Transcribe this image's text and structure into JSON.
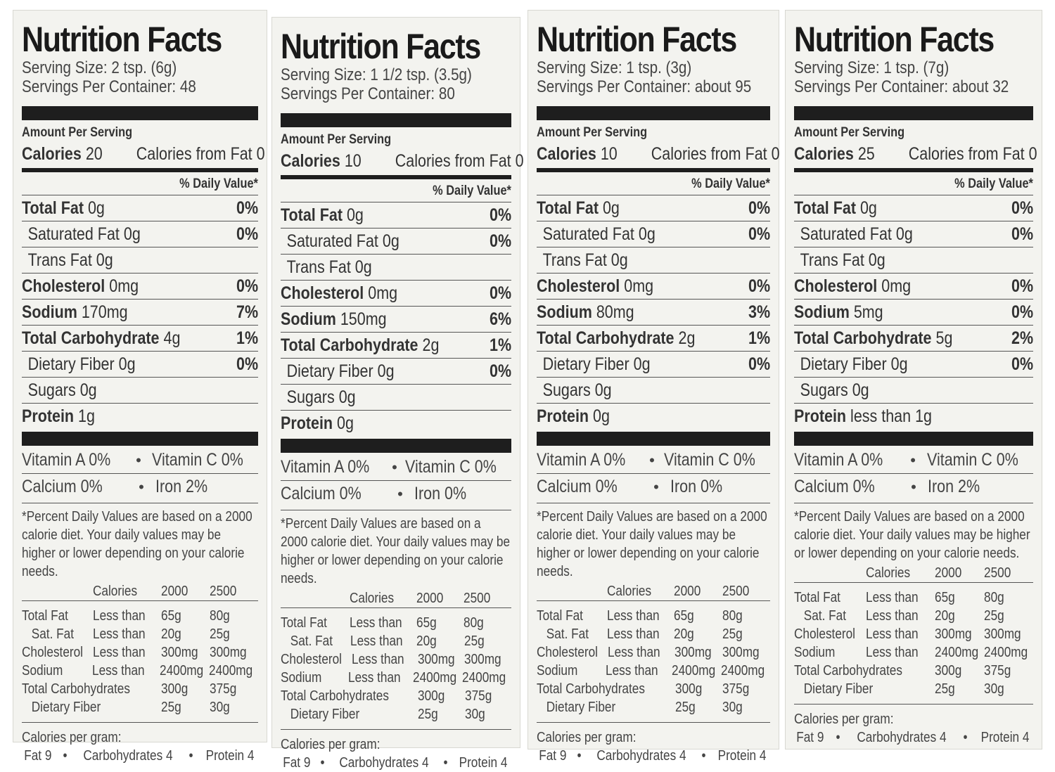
{
  "labels": [
    {
      "title": "Nutrition Facts",
      "serving_size": "Serving Size:  2 tsp. (6g)",
      "servings_per_container": "Servings Per Container:  48",
      "amount_per_serving": "Amount Per Serving",
      "calories_label": "Calories",
      "calories": "20",
      "calories_from_fat": "Calories from Fat 0",
      "daily_value_header": "% Daily Value*",
      "nutrients": [
        {
          "name": "Total Fat",
          "amount": "0g",
          "pct": "0%",
          "bold": true,
          "indent": false
        },
        {
          "name": "Saturated Fat",
          "amount": "0g",
          "pct": "0%",
          "bold": false,
          "indent": true
        },
        {
          "name": "Trans Fat",
          "amount": "0g",
          "pct": "",
          "bold": false,
          "indent": true
        },
        {
          "name": "Cholesterol",
          "amount": "0mg",
          "pct": "0%",
          "bold": true,
          "indent": false
        },
        {
          "name": "Sodium",
          "amount": "170mg",
          "pct": "7%",
          "bold": true,
          "indent": false
        },
        {
          "name": "Total Carbohydrate",
          "amount": "4g",
          "pct": "1%",
          "bold": true,
          "indent": false
        },
        {
          "name": "Dietary Fiber",
          "amount": "0g",
          "pct": "0%",
          "bold": false,
          "indent": true
        },
        {
          "name": "Sugars",
          "amount": "0g",
          "pct": "",
          "bold": false,
          "indent": true
        },
        {
          "name": "Protein",
          "amount": "1g",
          "pct": "",
          "bold": true,
          "indent": false
        }
      ],
      "vitamin_a": "Vitamin A 0%",
      "vitamin_c": "Vitamin C 0%",
      "calcium": "Calcium 0%",
      "iron": "Iron 2%"
    },
    {
      "title": "Nutrition Facts",
      "serving_size": "Serving Size:  1 1/2 tsp. (3.5g)",
      "servings_per_container": "Servings Per Container:  80",
      "amount_per_serving": "Amount Per Serving",
      "calories_label": "Calories",
      "calories": "10",
      "calories_from_fat": "Calories from Fat 0",
      "daily_value_header": "% Daily Value*",
      "nutrients": [
        {
          "name": "Total Fat",
          "amount": "0g",
          "pct": "0%",
          "bold": true,
          "indent": false
        },
        {
          "name": "Saturated Fat",
          "amount": "0g",
          "pct": "0%",
          "bold": false,
          "indent": true
        },
        {
          "name": "Trans Fat",
          "amount": "0g",
          "pct": "",
          "bold": false,
          "indent": true
        },
        {
          "name": "Cholesterol",
          "amount": "0mg",
          "pct": "0%",
          "bold": true,
          "indent": false
        },
        {
          "name": "Sodium",
          "amount": "150mg",
          "pct": "6%",
          "bold": true,
          "indent": false
        },
        {
          "name": "Total Carbohydrate",
          "amount": "2g",
          "pct": "1%",
          "bold": true,
          "indent": false
        },
        {
          "name": "Dietary Fiber",
          "amount": "0g",
          "pct": "0%",
          "bold": false,
          "indent": true
        },
        {
          "name": "Sugars",
          "amount": "0g",
          "pct": "",
          "bold": false,
          "indent": true
        },
        {
          "name": "Protein",
          "amount": "0g",
          "pct": "",
          "bold": true,
          "indent": false
        }
      ],
      "vitamin_a": "Vitamin A 0%",
      "vitamin_c": "Vitamin C 0%",
      "calcium": "Calcium 0%",
      "iron": "Iron 0%"
    },
    {
      "title": "Nutrition Facts",
      "serving_size": "Serving Size:  1 tsp. (3g)",
      "servings_per_container": "Servings Per Container: about 95",
      "amount_per_serving": "Amount Per Serving",
      "calories_label": "Calories",
      "calories": "10",
      "calories_from_fat": "Calories from Fat 0",
      "daily_value_header": "% Daily Value*",
      "nutrients": [
        {
          "name": "Total Fat",
          "amount": "0g",
          "pct": "0%",
          "bold": true,
          "indent": false
        },
        {
          "name": "Saturated Fat",
          "amount": "0g",
          "pct": "0%",
          "bold": false,
          "indent": true
        },
        {
          "name": "Trans Fat",
          "amount": "0g",
          "pct": "",
          "bold": false,
          "indent": true
        },
        {
          "name": "Cholesterol",
          "amount": "0mg",
          "pct": "0%",
          "bold": true,
          "indent": false
        },
        {
          "name": "Sodium",
          "amount": "80mg",
          "pct": "3%",
          "bold": true,
          "indent": false
        },
        {
          "name": "Total Carbohydrate",
          "amount": "2g",
          "pct": "1%",
          "bold": true,
          "indent": false
        },
        {
          "name": "Dietary Fiber",
          "amount": "0g",
          "pct": "0%",
          "bold": false,
          "indent": true
        },
        {
          "name": "Sugars",
          "amount": "0g",
          "pct": "",
          "bold": false,
          "indent": true
        },
        {
          "name": "Protein",
          "amount": "0g",
          "pct": "",
          "bold": true,
          "indent": false
        }
      ],
      "vitamin_a": "Vitamin A 0%",
      "vitamin_c": "Vitamin C 0%",
      "calcium": "Calcium 0%",
      "iron": "Iron 0%"
    },
    {
      "title": "Nutrition Facts",
      "serving_size": "Serving Size:  1 tsp. (7g)",
      "servings_per_container": "Servings Per Container:  about 32",
      "amount_per_serving": "Amount Per Serving",
      "calories_label": "Calories",
      "calories": "25",
      "calories_from_fat": "Calories from Fat 0",
      "daily_value_header": "% Daily Value*",
      "nutrients": [
        {
          "name": "Total Fat",
          "amount": "0g",
          "pct": "0%",
          "bold": true,
          "indent": false
        },
        {
          "name": "Saturated Fat",
          "amount": "0g",
          "pct": "0%",
          "bold": false,
          "indent": true
        },
        {
          "name": "Trans Fat",
          "amount": "0g",
          "pct": "",
          "bold": false,
          "indent": true
        },
        {
          "name": "Cholesterol",
          "amount": "0mg",
          "pct": "0%",
          "bold": true,
          "indent": false
        },
        {
          "name": "Sodium",
          "amount": "5mg",
          "pct": "0%",
          "bold": true,
          "indent": false
        },
        {
          "name": "Total Carbohydrate",
          "amount": "5g",
          "pct": "2%",
          "bold": true,
          "indent": false
        },
        {
          "name": "Dietary Fiber",
          "amount": "0g",
          "pct": "0%",
          "bold": false,
          "indent": true
        },
        {
          "name": "Sugars",
          "amount": "0g",
          "pct": "",
          "bold": false,
          "indent": true
        },
        {
          "name": "Protein",
          "amount": "less than 1g",
          "pct": "",
          "bold": true,
          "indent": false
        }
      ],
      "vitamin_a": "Vitamin A 0%",
      "vitamin_c": "Vitamin C 0%",
      "calcium": "Calcium 0%",
      "iron": "Iron 2%"
    }
  ],
  "footnote": "*Percent Daily Values are based on a 2000 calorie diet. Your daily values may be higher or lower depending on your calorie needs.",
  "dv_table": {
    "header": [
      "",
      "Calories",
      "2000",
      "2500"
    ],
    "rows": [
      {
        "nutrient": "Total Fat",
        "qualifier": "Less than",
        "v2000": "65g",
        "v2500": "80g",
        "indent": false
      },
      {
        "nutrient": "Sat. Fat",
        "qualifier": "Less than",
        "v2000": "20g",
        "v2500": "25g",
        "indent": true
      },
      {
        "nutrient": "Cholesterol",
        "qualifier": "Less than",
        "v2000": "300mg",
        "v2500": "300mg",
        "indent": false
      },
      {
        "nutrient": "Sodium",
        "qualifier": "Less than",
        "v2000": "2400mg",
        "v2500": "2400mg",
        "indent": false
      },
      {
        "nutrient": "Total Carbohydrates",
        "qualifier": "",
        "v2000": "300g",
        "v2500": "375g",
        "indent": false
      },
      {
        "nutrient": "Dietary Fiber",
        "qualifier": "",
        "v2000": "25g",
        "v2500": "30g",
        "indent": true
      }
    ]
  },
  "calories_per_gram": {
    "title": "Calories per gram:",
    "fat": "Fat 9",
    "carbohydrates": "Carbohydrates 4",
    "protein": "Protein 4",
    "separator": "•"
  }
}
